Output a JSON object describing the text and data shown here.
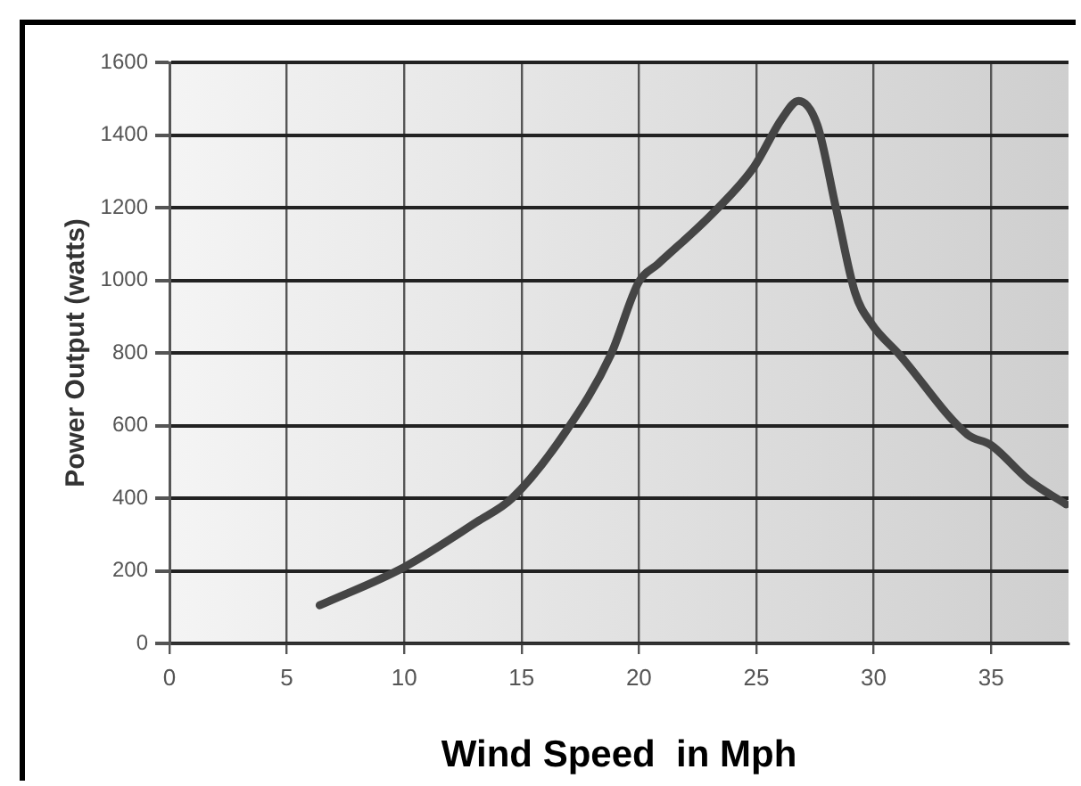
{
  "chart_data": {
    "type": "line",
    "xlabel": "Wind Speed  in Mph",
    "ylabel": "Power Output (watts)",
    "x": [
      6.4,
      10,
      13.1,
      14.6,
      16.9,
      18.8,
      20,
      20.8,
      23.2,
      24.9,
      26.1,
      26.8,
      27.6,
      28.4,
      29.2,
      29.9,
      31.1,
      34,
      35,
      36.6,
      38.2
    ],
    "series": [
      {
        "color": "#454545",
        "values": [
          105,
          210,
          335,
          400,
          585,
          795,
          996,
          1044,
          1188,
          1312,
          1446,
          1494,
          1427,
          1197,
          967,
          881,
          795,
          575,
          546,
          450,
          383
        ]
      }
    ],
    "xlim": [
      0,
      38.3
    ],
    "xticks": [
      0,
      5,
      10,
      15,
      20,
      25,
      30,
      35
    ],
    "ylim": [
      0,
      1600
    ],
    "yticks": [
      0,
      200,
      400,
      600,
      800,
      1000,
      1200,
      1400,
      1600
    ],
    "grid": true,
    "legend": false,
    "marker": "none",
    "line_style": "solid"
  }
}
